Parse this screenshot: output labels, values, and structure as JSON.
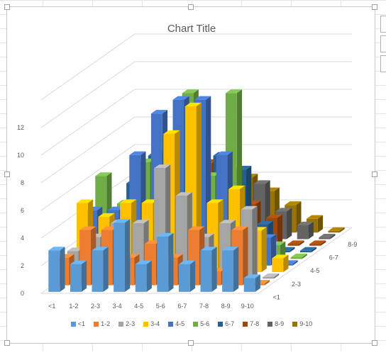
{
  "chart_data": {
    "type": "bar",
    "subtype": "3d-column",
    "title": "Chart Title",
    "categories": [
      "<1",
      "1-2",
      "2-3",
      "3-4",
      "4-5",
      "5-6",
      "6-7",
      "7-8",
      "8-9",
      "9-10"
    ],
    "depth_labels": [
      "<1",
      "2-3",
      "4-5",
      "6-7",
      "8-9"
    ],
    "y_ticks": [
      0,
      2,
      4,
      6,
      8,
      10,
      12
    ],
    "ylim": [
      0,
      14
    ],
    "gridlines": true,
    "legend_position": "bottom",
    "series": [
      {
        "name": "<1",
        "color": "#5b9bd5",
        "values": [
          3,
          2,
          3,
          5,
          2,
          4,
          2,
          3,
          3,
          1
        ]
      },
      {
        "name": "1-2",
        "color": "#ed7d31",
        "values": [
          2,
          4,
          4,
          2,
          3,
          2,
          4,
          1,
          4,
          0
        ]
      },
      {
        "name": "2-3",
        "color": "#a5a5a5",
        "values": [
          2,
          3,
          4,
          4,
          8,
          6,
          3,
          4,
          5,
          0
        ]
      },
      {
        "name": "3-4",
        "color": "#ffc000",
        "values": [
          5,
          4,
          5,
          5,
          10,
          12,
          5,
          6,
          3,
          1
        ]
      },
      {
        "name": "4-5",
        "color": "#4472c4",
        "values": [
          4,
          4,
          8,
          11,
          12,
          12,
          8,
          4,
          2,
          0
        ]
      },
      {
        "name": "5-6",
        "color": "#70ad47",
        "values": [
          6,
          4,
          7,
          6,
          12,
          6,
          12,
          1,
          1,
          0
        ]
      },
      {
        "name": "6-7",
        "color": "#255e91",
        "values": [
          3,
          5,
          7,
          8,
          8,
          7,
          6,
          2,
          0,
          0
        ]
      },
      {
        "name": "7-8",
        "color": "#9e480e",
        "values": [
          2,
          3,
          6,
          6,
          6,
          5,
          3,
          2,
          0,
          0
        ]
      },
      {
        "name": "8-9",
        "color": "#636363",
        "values": [
          1,
          2,
          3,
          4,
          5,
          4,
          4,
          2,
          1,
          0
        ]
      },
      {
        "name": "9-10",
        "color": "#997300",
        "values": [
          1,
          2,
          3,
          4,
          4,
          4,
          3,
          2,
          1,
          0
        ]
      }
    ]
  }
}
